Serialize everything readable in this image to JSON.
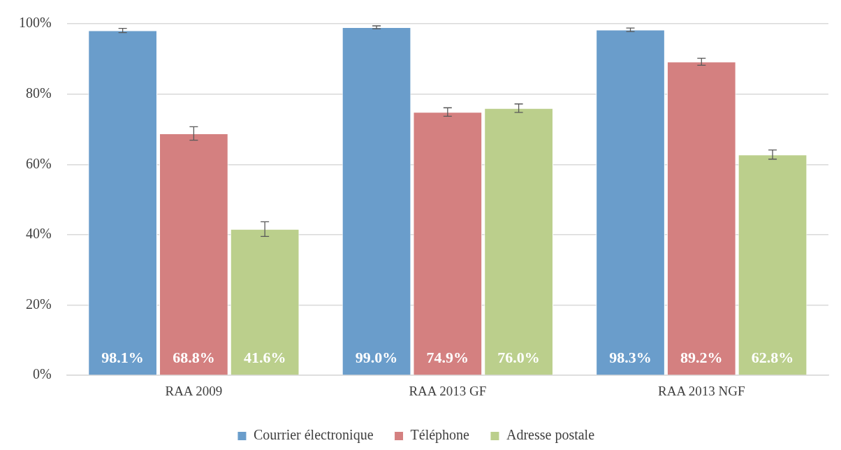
{
  "chart_data": {
    "type": "bar",
    "categories": [
      "RAA 2009",
      "RAA 2013 GF",
      "RAA 2013 NGF"
    ],
    "series": [
      {
        "name": "Courrier électronique",
        "color": "#6a9dcb",
        "values": [
          98.1,
          99.0,
          98.3
        ],
        "errors": [
          0.6,
          0.4,
          0.5
        ],
        "value_labels": [
          "98.1%",
          "99.0%",
          "98.3%"
        ]
      },
      {
        "name": "Téléphone",
        "color": "#d48080",
        "values": [
          68.8,
          74.9,
          89.2
        ],
        "errors": [
          1.9,
          1.2,
          1.0
        ],
        "value_labels": [
          "68.8%",
          "74.9%",
          "89.2%"
        ]
      },
      {
        "name": "Adresse postale",
        "color": "#bbcf8c",
        "values": [
          41.6,
          76.0,
          62.8
        ],
        "errors": [
          2.1,
          1.2,
          1.3
        ],
        "value_labels": [
          "41.6%",
          "76.0%",
          "62.8%"
        ]
      }
    ],
    "ylim": [
      0,
      100
    ],
    "yticks": [
      {
        "value": 0,
        "label": "0%"
      },
      {
        "value": 20,
        "label": "20%"
      },
      {
        "value": 40,
        "label": "40%"
      },
      {
        "value": 60,
        "label": "60%"
      },
      {
        "value": 80,
        "label": "80%"
      },
      {
        "value": 100,
        "label": "100%"
      }
    ],
    "grid": "y",
    "legend": "bottom"
  }
}
